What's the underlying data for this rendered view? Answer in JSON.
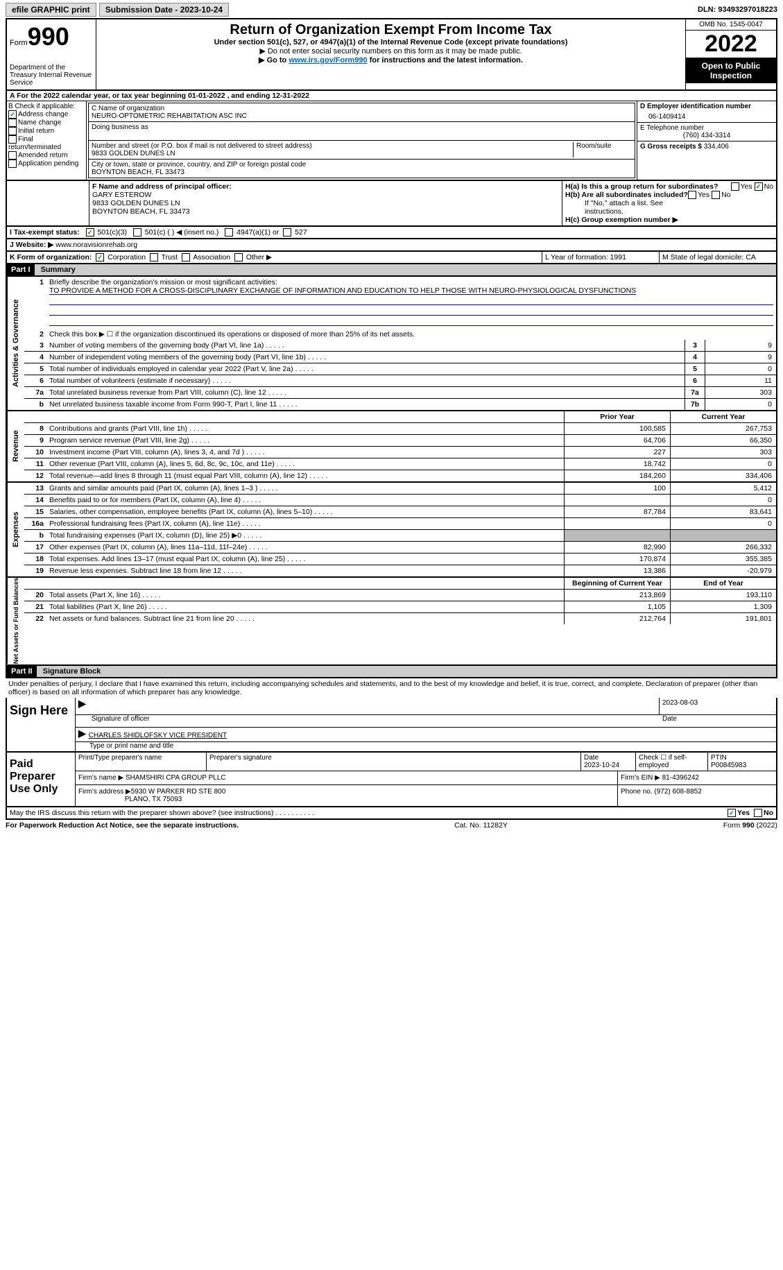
{
  "topbar": {
    "efile": "efile GRAPHIC print",
    "submission": "Submission Date - 2023-10-24",
    "dln": "DLN: 93493297018223"
  },
  "header": {
    "form_word": "Form",
    "form_num": "990",
    "dept": "Department of the Treasury\nInternal Revenue Service",
    "title": "Return of Organization Exempt From Income Tax",
    "sub1": "Under section 501(c), 527, or 4947(a)(1) of the Internal Revenue Code (except private foundations)",
    "sub2": "▶ Do not enter social security numbers on this form as it may be made public.",
    "sub3_pre": "▶ Go to ",
    "sub3_link": "www.irs.gov/Form990",
    "sub3_post": " for instructions and the latest information.",
    "omb": "OMB No. 1545-0047",
    "year": "2022",
    "open": "Open to Public Inspection"
  },
  "rowA": "A For the 2022 calendar year, or tax year beginning 01-01-2022     , and ending 12-31-2022",
  "secB": {
    "b_head": "B Check if applicable:",
    "opts": [
      "Address change",
      "Name change",
      "Initial return",
      "Final return/terminated",
      "Amended return",
      "Application pending"
    ],
    "c_label": "C Name of organization",
    "c_val": "NEURO-OPTOMETRIC REHABITATION ASC INC",
    "dba": "Doing business as",
    "street_lbl": "Number and street (or P.O. box if mail is not delivered to street address)",
    "room_lbl": "Room/suite",
    "street_val": "9833 GOLDEN DUNES LN",
    "city_lbl": "City or town, state or province, country, and ZIP or foreign postal code",
    "city_val": "BOYNTON BEACH, FL  33473",
    "d_lbl": "D Employer identification number",
    "d_val": "06-1409414",
    "e_lbl": "E Telephone number",
    "e_val": "(760) 434-3314",
    "g_lbl": "G Gross receipts $",
    "g_val": "334,406"
  },
  "secF": {
    "f_lbl": "F  Name and address of principal officer:",
    "f_name": "GARY ESTEROW",
    "f_addr1": "9833 GOLDEN DUNES LN",
    "f_addr2": "BOYNTON BEACH, FL  33473",
    "ha": "H(a)  Is this a group return for subordinates?",
    "hb": "H(b)  Are all subordinates included?",
    "h_note": "If \"No,\" attach a list. See instructions.",
    "hc": "H(c)  Group exemption number ▶",
    "yes": "Yes",
    "no": "No"
  },
  "rowI": {
    "label": "I     Tax-exempt status:",
    "o1": "501(c)(3)",
    "o2": "501(c) (  ) ◀ (insert no.)",
    "o3": "4947(a)(1) or",
    "o4": "527"
  },
  "rowJ": {
    "label": "J    Website: ▶",
    "val": " www.noravisionrehab.org"
  },
  "rowK": {
    "label": "K Form of organization:",
    "o1": "Corporation",
    "o2": "Trust",
    "o3": "Association",
    "o4": "Other ▶",
    "l": "L Year of formation: 1991",
    "m": "M State of legal domicile: CA"
  },
  "part1": {
    "num": "Part I",
    "title": "Summary",
    "l1": "Briefly describe the organization's mission or most significant activities:",
    "mission": "TO PROVIDE A METHOD FOR A CROSS-DISCIPLINARY EXCHANGE OF INFORMATION AND EDUCATION TO HELP THOSE WITH NEURO-PHYSIOLOGICAL DYSFUNCTIONS",
    "l2": "Check this box ▶ ☐ if the organization discontinued its operations or disposed of more than 25% of its net assets."
  },
  "sides": {
    "gov": "Activities & Governance",
    "rev": "Revenue",
    "exp": "Expenses",
    "net": "Net Assets or Fund Balances"
  },
  "govLines": [
    {
      "n": "3",
      "d": "Number of voting members of the governing body (Part VI, line 1a)",
      "b": "3",
      "v": "9"
    },
    {
      "n": "4",
      "d": "Number of independent voting members of the governing body (Part VI, line 1b)",
      "b": "4",
      "v": "9"
    },
    {
      "n": "5",
      "d": "Total number of individuals employed in calendar year 2022 (Part V, line 2a)",
      "b": "5",
      "v": "0"
    },
    {
      "n": "6",
      "d": "Total number of volunteers (estimate if necessary)",
      "b": "6",
      "v": "11"
    },
    {
      "n": "7a",
      "d": "Total unrelated business revenue from Part VIII, column (C), line 12",
      "b": "7a",
      "v": "303"
    },
    {
      "n": "b",
      "d": "Net unrelated business taxable income from Form 990-T, Part I, line 11",
      "b": "7b",
      "v": "0"
    }
  ],
  "cols": {
    "prior": "Prior Year",
    "curr": "Current Year",
    "beg": "Beginning of Current Year",
    "end": "End of Year"
  },
  "revLines": [
    {
      "n": "8",
      "d": "Contributions and grants (Part VIII, line 1h)",
      "p": "100,585",
      "c": "267,753"
    },
    {
      "n": "9",
      "d": "Program service revenue (Part VIII, line 2g)",
      "p": "64,706",
      "c": "66,350"
    },
    {
      "n": "10",
      "d": "Investment income (Part VIII, column (A), lines 3, 4, and 7d )",
      "p": "227",
      "c": "303"
    },
    {
      "n": "11",
      "d": "Other revenue (Part VIII, column (A), lines 5, 6d, 8c, 9c, 10c, and 11e)",
      "p": "18,742",
      "c": "0"
    },
    {
      "n": "12",
      "d": "Total revenue—add lines 8 through 11 (must equal Part VIII, column (A), line 12)",
      "p": "184,260",
      "c": "334,406"
    }
  ],
  "expLines": [
    {
      "n": "13",
      "d": "Grants and similar amounts paid (Part IX, column (A), lines 1–3 )",
      "p": "100",
      "c": "5,412"
    },
    {
      "n": "14",
      "d": "Benefits paid to or for members (Part IX, column (A), line 4)",
      "p": "",
      "c": "0"
    },
    {
      "n": "15",
      "d": "Salaries, other compensation, employee benefits (Part IX, column (A), lines 5–10)",
      "p": "87,784",
      "c": "83,641"
    },
    {
      "n": "16a",
      "d": "Professional fundraising fees (Part IX, column (A), line 11e)",
      "p": "",
      "c": "0"
    },
    {
      "n": "b",
      "d": "Total fundraising expenses (Part IX, column (D), line 25) ▶0",
      "p": "SHADE",
      "c": "SHADE"
    },
    {
      "n": "17",
      "d": "Other expenses (Part IX, column (A), lines 11a–11d, 11f–24e)",
      "p": "82,990",
      "c": "266,332"
    },
    {
      "n": "18",
      "d": "Total expenses. Add lines 13–17 (must equal Part IX, column (A), line 25)",
      "p": "170,874",
      "c": "355,385"
    },
    {
      "n": "19",
      "d": "Revenue less expenses. Subtract line 18 from line 12",
      "p": "13,386",
      "c": "-20,979"
    }
  ],
  "netLines": [
    {
      "n": "20",
      "d": "Total assets (Part X, line 16)",
      "p": "213,869",
      "c": "193,110"
    },
    {
      "n": "21",
      "d": "Total liabilities (Part X, line 26)",
      "p": "1,105",
      "c": "1,309"
    },
    {
      "n": "22",
      "d": "Net assets or fund balances. Subtract line 21 from line 20",
      "p": "212,764",
      "c": "191,801"
    }
  ],
  "part2": {
    "num": "Part II",
    "title": "Signature Block",
    "decl": "Under penalties of perjury, I declare that I have examined this return, including accompanying schedules and statements, and to the best of my knowledge and belief, it is true, correct, and complete. Declaration of preparer (other than officer) is based on all information of which preparer has any knowledge."
  },
  "sign": {
    "label": "Sign Here",
    "sig_lbl": "Signature of officer",
    "date_lbl": "Date",
    "date_val": "2023-08-03",
    "name": "CHARLES SHIDLOFSKY VICE PRESIDENT",
    "name_lbl": "Type or print name and title"
  },
  "paid": {
    "label": "Paid Preparer Use Only",
    "pname_lbl": "Print/Type preparer's name",
    "psig_lbl": "Preparer's signature",
    "pdate_lbl": "Date",
    "pdate_val": "2023-10-24",
    "self_lbl": "Check ☐ if self-employed",
    "ptin_lbl": "PTIN",
    "ptin_val": "P00845983",
    "firm_lbl": "Firm's name      ▶",
    "firm_val": "SHAMSHIRI CPA GROUP PLLC",
    "ein_lbl": "Firm's EIN ▶",
    "ein_val": "81-4396242",
    "addr_lbl": "Firm's address ▶",
    "addr_val1": "5930 W PARKER RD STE 800",
    "addr_val2": "PLANO, TX  75093",
    "phone_lbl": "Phone no.",
    "phone_val": "(972) 608-8852"
  },
  "discuss": "May the IRS discuss this return with the preparer shown above? (see instructions)",
  "footer": {
    "left": "For Paperwork Reduction Act Notice, see the separate instructions.",
    "mid": "Cat. No. 11282Y",
    "right": "Form 990 (2022)"
  }
}
